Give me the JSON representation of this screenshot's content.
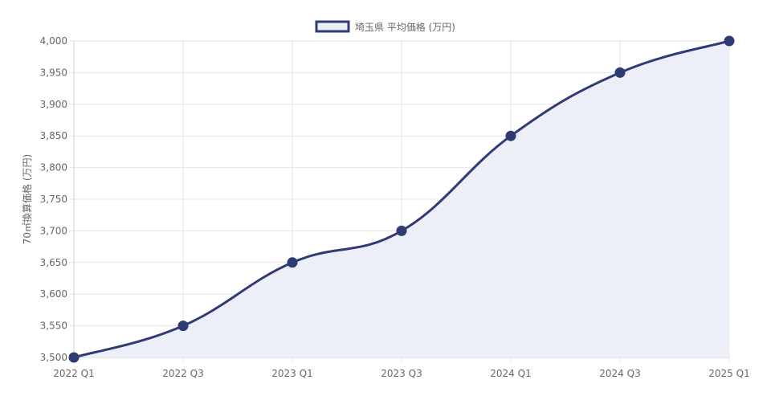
{
  "chart_data": {
    "type": "line",
    "categories": [
      "2022 Q1",
      "2022 Q3",
      "2023 Q1",
      "2023 Q3",
      "2024 Q1",
      "2024 Q3",
      "2025 Q1"
    ],
    "series": [
      {
        "name": "埼玉県 平均価格 (万円)",
        "values": [
          3500,
          3550,
          3650,
          3700,
          3850,
          3950,
          4000
        ],
        "color": "#2e3b75",
        "fill": "#eceef8"
      }
    ],
    "ylabel": "70㎡換算価格 (万円)",
    "xlabel": "",
    "ylim": [
      3500,
      4000
    ],
    "yticks": [
      "3,500",
      "3,550",
      "3,600",
      "3,650",
      "3,700",
      "3,750",
      "3,800",
      "3,850",
      "3,900",
      "3,950",
      "4,000"
    ],
    "grid": true,
    "legend_position": "top-center",
    "area_fill": true
  }
}
